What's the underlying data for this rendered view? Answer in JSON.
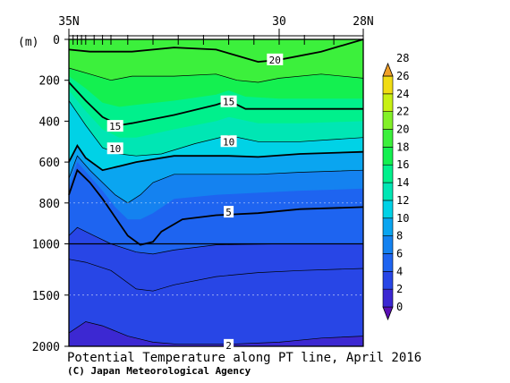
{
  "chart_data": {
    "type": "contour",
    "title": "Potential Temperature along PT line, April 2016",
    "credit": "(C) Japan Meteorological Agency",
    "y_unit": "(m)",
    "x_tick_labels": [
      {
        "lat": 35,
        "label": "35N"
      },
      {
        "lat": 30,
        "label": "30"
      },
      {
        "lat": 28,
        "label": "28N"
      }
    ],
    "x_range": [
      35,
      28
    ],
    "y_tick_labels": [
      {
        "depth": 0,
        "label": "0"
      },
      {
        "depth": 200,
        "label": "200"
      },
      {
        "depth": 400,
        "label": "400"
      },
      {
        "depth": 600,
        "label": "600"
      },
      {
        "depth": 800,
        "label": "800"
      },
      {
        "depth": 1000,
        "label": "1000"
      },
      {
        "depth": 1500,
        "label": "1500"
      },
      {
        "depth": 2000,
        "label": "2000"
      }
    ],
    "y_range": [
      0,
      2000
    ],
    "y_axis_note": "depth axis: linear 0-1000 m, compressed 1000-2000 m",
    "colorbar": {
      "levels": [
        0,
        2,
        4,
        6,
        8,
        10,
        12,
        14,
        16,
        18,
        20,
        22,
        24,
        26,
        28
      ],
      "labels": [
        "0",
        "2",
        "4",
        "6",
        "8",
        "10",
        "12",
        "14",
        "16",
        "18",
        "20",
        "22",
        "24",
        "26",
        "28"
      ],
      "colors": [
        "#5a0fb4",
        "#3c28d2",
        "#2846e6",
        "#1e64f0",
        "#1482f0",
        "#0aa5f0",
        "#00d2e6",
        "#00e6b4",
        "#00f08c",
        "#14f050",
        "#3cf03c",
        "#82f028",
        "#c8f014",
        "#f0dc14",
        "#f0a028"
      ]
    },
    "contour_labels": [
      {
        "value": 20,
        "label": "20",
        "lat": 30.1,
        "depth": 100
      },
      {
        "value": 15,
        "label": "15",
        "lat": 31.2,
        "depth": 305
      },
      {
        "value": 15,
        "label": "15",
        "lat": 33.9,
        "depth": 425
      },
      {
        "value": 10,
        "label": "10",
        "lat": 31.2,
        "depth": 500
      },
      {
        "value": 10,
        "label": "10",
        "lat": 33.9,
        "depth": 535
      },
      {
        "value": 5,
        "label": "5",
        "lat": 31.2,
        "depth": 845
      },
      {
        "value": 2,
        "label": "2",
        "lat": 31.2,
        "depth": 1990
      }
    ],
    "contour_lines": [
      {
        "value": 20,
        "points": [
          [
            35,
            50
          ],
          [
            34.5,
            60
          ],
          [
            33.5,
            60
          ],
          [
            32.5,
            40
          ],
          [
            31.5,
            50
          ],
          [
            31.0,
            80
          ],
          [
            30.5,
            110
          ],
          [
            30.0,
            100
          ],
          [
            29.0,
            60
          ],
          [
            28.0,
            0
          ]
        ]
      },
      {
        "value": 18,
        "points": [
          [
            35,
            140
          ],
          [
            34.5,
            170
          ],
          [
            34.0,
            200
          ],
          [
            33.5,
            180
          ],
          [
            32.5,
            180
          ],
          [
            31.5,
            170
          ],
          [
            31.0,
            200
          ],
          [
            30.5,
            210
          ],
          [
            30.0,
            190
          ],
          [
            29.0,
            170
          ],
          [
            28.0,
            190
          ]
        ]
      },
      {
        "value": 15,
        "points": [
          [
            35,
            210
          ],
          [
            34.6,
            300
          ],
          [
            34.2,
            380
          ],
          [
            33.8,
            420
          ],
          [
            33.5,
            410
          ],
          [
            32.5,
            370
          ],
          [
            31.5,
            320
          ],
          [
            31.2,
            300
          ],
          [
            30.8,
            340
          ],
          [
            30.0,
            340
          ],
          [
            29.0,
            340
          ],
          [
            28.0,
            340
          ]
        ]
      },
      {
        "value": 12,
        "points": [
          [
            35,
            300
          ],
          [
            34.6,
            420
          ],
          [
            34.2,
            530
          ],
          [
            33.8,
            560
          ],
          [
            33.4,
            570
          ],
          [
            32.8,
            560
          ],
          [
            32.0,
            510
          ],
          [
            31.2,
            470
          ],
          [
            30.5,
            500
          ],
          [
            29.5,
            500
          ],
          [
            28.0,
            480
          ]
        ]
      },
      {
        "value": 10,
        "points": [
          [
            35,
            600
          ],
          [
            34.8,
            520
          ],
          [
            34.6,
            580
          ],
          [
            34.2,
            640
          ],
          [
            33.8,
            620
          ],
          [
            33.4,
            600
          ],
          [
            32.5,
            570
          ],
          [
            31.5,
            570
          ],
          [
            31.2,
            570
          ],
          [
            30.5,
            575
          ],
          [
            29.5,
            560
          ],
          [
            28.0,
            550
          ]
        ]
      },
      {
        "value": 8,
        "points": [
          [
            35,
            680
          ],
          [
            34.8,
            570
          ],
          [
            34.5,
            640
          ],
          [
            34.2,
            700
          ],
          [
            33.9,
            760
          ],
          [
            33.6,
            800
          ],
          [
            33.3,
            760
          ],
          [
            33.0,
            700
          ],
          [
            32.5,
            660
          ],
          [
            31.5,
            660
          ],
          [
            30.5,
            660
          ],
          [
            29.5,
            650
          ],
          [
            28.0,
            640
          ]
        ]
      },
      {
        "value": 5,
        "points": [
          [
            35,
            760
          ],
          [
            34.8,
            640
          ],
          [
            34.5,
            700
          ],
          [
            34.2,
            780
          ],
          [
            33.9,
            870
          ],
          [
            33.6,
            960
          ],
          [
            33.3,
            1010
          ],
          [
            33.0,
            990
          ],
          [
            32.8,
            940
          ],
          [
            32.3,
            880
          ],
          [
            31.5,
            860
          ],
          [
            30.5,
            850
          ],
          [
            29.5,
            830
          ],
          [
            28.0,
            820
          ]
        ]
      },
      {
        "value": 4,
        "points": [
          [
            35,
            960
          ],
          [
            34.8,
            920
          ],
          [
            34.4,
            960
          ],
          [
            34.0,
            1000
          ],
          [
            33.4,
            1080
          ],
          [
            33.0,
            1100
          ],
          [
            32.5,
            1060
          ],
          [
            31.5,
            1010
          ],
          [
            30.0,
            1000
          ],
          [
            28.0,
            1000
          ]
        ]
      },
      {
        "value": 3,
        "points": [
          [
            35,
            1150
          ],
          [
            34.6,
            1180
          ],
          [
            34.0,
            1260
          ],
          [
            33.4,
            1440
          ],
          [
            33.0,
            1460
          ],
          [
            32.5,
            1400
          ],
          [
            31.5,
            1320
          ],
          [
            30.5,
            1280
          ],
          [
            29.5,
            1260
          ],
          [
            28.0,
            1240
          ]
        ]
      },
      {
        "value": 2,
        "points": [
          [
            35,
            1870
          ],
          [
            34.6,
            1760
          ],
          [
            34.2,
            1800
          ],
          [
            33.6,
            1900
          ],
          [
            33.0,
            1960
          ],
          [
            32.4,
            1980
          ],
          [
            31.2,
            1980
          ],
          [
            30.0,
            1960
          ],
          [
            29.0,
            1920
          ],
          [
            28.0,
            1900
          ]
        ]
      }
    ],
    "station_lats": [
      35.0,
      34.9,
      34.8,
      34.7,
      34.6,
      34.4,
      34.2,
      34.0,
      33.6,
      33.0,
      32.4,
      31.8,
      31.2,
      30.6,
      30.0,
      29.4,
      28.7,
      28.0
    ],
    "field_bands": [
      {
        "floor_level": 18,
        "floor_line": [
          [
            35,
            140
          ],
          [
            34.5,
            170
          ],
          [
            34.0,
            200
          ],
          [
            33.5,
            180
          ],
          [
            32.5,
            180
          ],
          [
            31.5,
            170
          ],
          [
            31.0,
            200
          ],
          [
            30.5,
            210
          ],
          [
            30.0,
            190
          ],
          [
            29.0,
            170
          ],
          [
            28.0,
            190
          ]
        ]
      },
      {
        "floor_level": 16,
        "floor_line": [
          [
            35,
            180
          ],
          [
            34.6,
            240
          ],
          [
            34.2,
            310
          ],
          [
            33.8,
            330
          ],
          [
            33.4,
            320
          ],
          [
            32.5,
            300
          ],
          [
            31.5,
            270
          ],
          [
            31.2,
            250
          ],
          [
            30.8,
            280
          ],
          [
            30.0,
            290
          ],
          [
            29.0,
            290
          ],
          [
            28.0,
            290
          ]
        ]
      },
      {
        "floor_level": 14,
        "floor_line": [
          [
            35,
            250
          ],
          [
            34.6,
            350
          ],
          [
            34.2,
            440
          ],
          [
            33.8,
            480
          ],
          [
            33.4,
            480
          ],
          [
            32.5,
            440
          ],
          [
            31.5,
            400
          ],
          [
            31.2,
            380
          ],
          [
            30.5,
            410
          ],
          [
            29.5,
            410
          ],
          [
            28.0,
            400
          ]
        ]
      },
      {
        "floor_level": 12,
        "floor_line": [
          [
            35,
            300
          ],
          [
            34.6,
            420
          ],
          [
            34.2,
            530
          ],
          [
            33.8,
            560
          ],
          [
            33.4,
            570
          ],
          [
            32.8,
            560
          ],
          [
            32.0,
            510
          ],
          [
            31.2,
            470
          ],
          [
            30.5,
            500
          ],
          [
            29.5,
            500
          ],
          [
            28.0,
            480
          ]
        ]
      },
      {
        "floor_level": 10,
        "floor_line": [
          [
            35,
            600
          ],
          [
            34.8,
            520
          ],
          [
            34.6,
            580
          ],
          [
            34.2,
            640
          ],
          [
            33.8,
            620
          ],
          [
            33.4,
            600
          ],
          [
            32.5,
            570
          ],
          [
            31.5,
            570
          ],
          [
            31.2,
            570
          ],
          [
            30.5,
            575
          ],
          [
            29.5,
            560
          ],
          [
            28.0,
            550
          ]
        ]
      },
      {
        "floor_level": 8,
        "floor_line": [
          [
            35,
            680
          ],
          [
            34.8,
            570
          ],
          [
            34.5,
            640
          ],
          [
            34.2,
            700
          ],
          [
            33.9,
            760
          ],
          [
            33.6,
            800
          ],
          [
            33.3,
            760
          ],
          [
            33.0,
            700
          ],
          [
            32.5,
            660
          ],
          [
            31.5,
            660
          ],
          [
            30.5,
            660
          ],
          [
            29.5,
            650
          ],
          [
            28.0,
            640
          ]
        ]
      },
      {
        "floor_level": 6,
        "floor_line": [
          [
            35,
            720
          ],
          [
            34.8,
            600
          ],
          [
            34.5,
            670
          ],
          [
            34.2,
            740
          ],
          [
            33.9,
            820
          ],
          [
            33.6,
            880
          ],
          [
            33.3,
            880
          ],
          [
            33.0,
            850
          ],
          [
            32.5,
            780
          ],
          [
            31.5,
            760
          ],
          [
            30.5,
            750
          ],
          [
            29.5,
            740
          ],
          [
            28.0,
            730
          ]
        ]
      },
      {
        "floor_level": 4,
        "floor_line": [
          [
            35,
            960
          ],
          [
            34.8,
            920
          ],
          [
            34.4,
            960
          ],
          [
            34.0,
            1000
          ],
          [
            33.4,
            1080
          ],
          [
            33.0,
            1100
          ],
          [
            32.5,
            1060
          ],
          [
            31.5,
            1010
          ],
          [
            30.0,
            1000
          ],
          [
            28.0,
            1000
          ]
        ]
      },
      {
        "floor_level": 2,
        "floor_line": [
          [
            35,
            1870
          ],
          [
            34.6,
            1760
          ],
          [
            34.2,
            1800
          ],
          [
            33.6,
            1900
          ],
          [
            33.0,
            1960
          ],
          [
            32.4,
            1980
          ],
          [
            31.2,
            1980
          ],
          [
            30.0,
            1960
          ],
          [
            29.0,
            1920
          ],
          [
            28.0,
            1900
          ]
        ]
      },
      {
        "floor_level": 0,
        "floor_line": [
          [
            35,
            2000
          ],
          [
            28.0,
            2000
          ]
        ]
      }
    ]
  }
}
